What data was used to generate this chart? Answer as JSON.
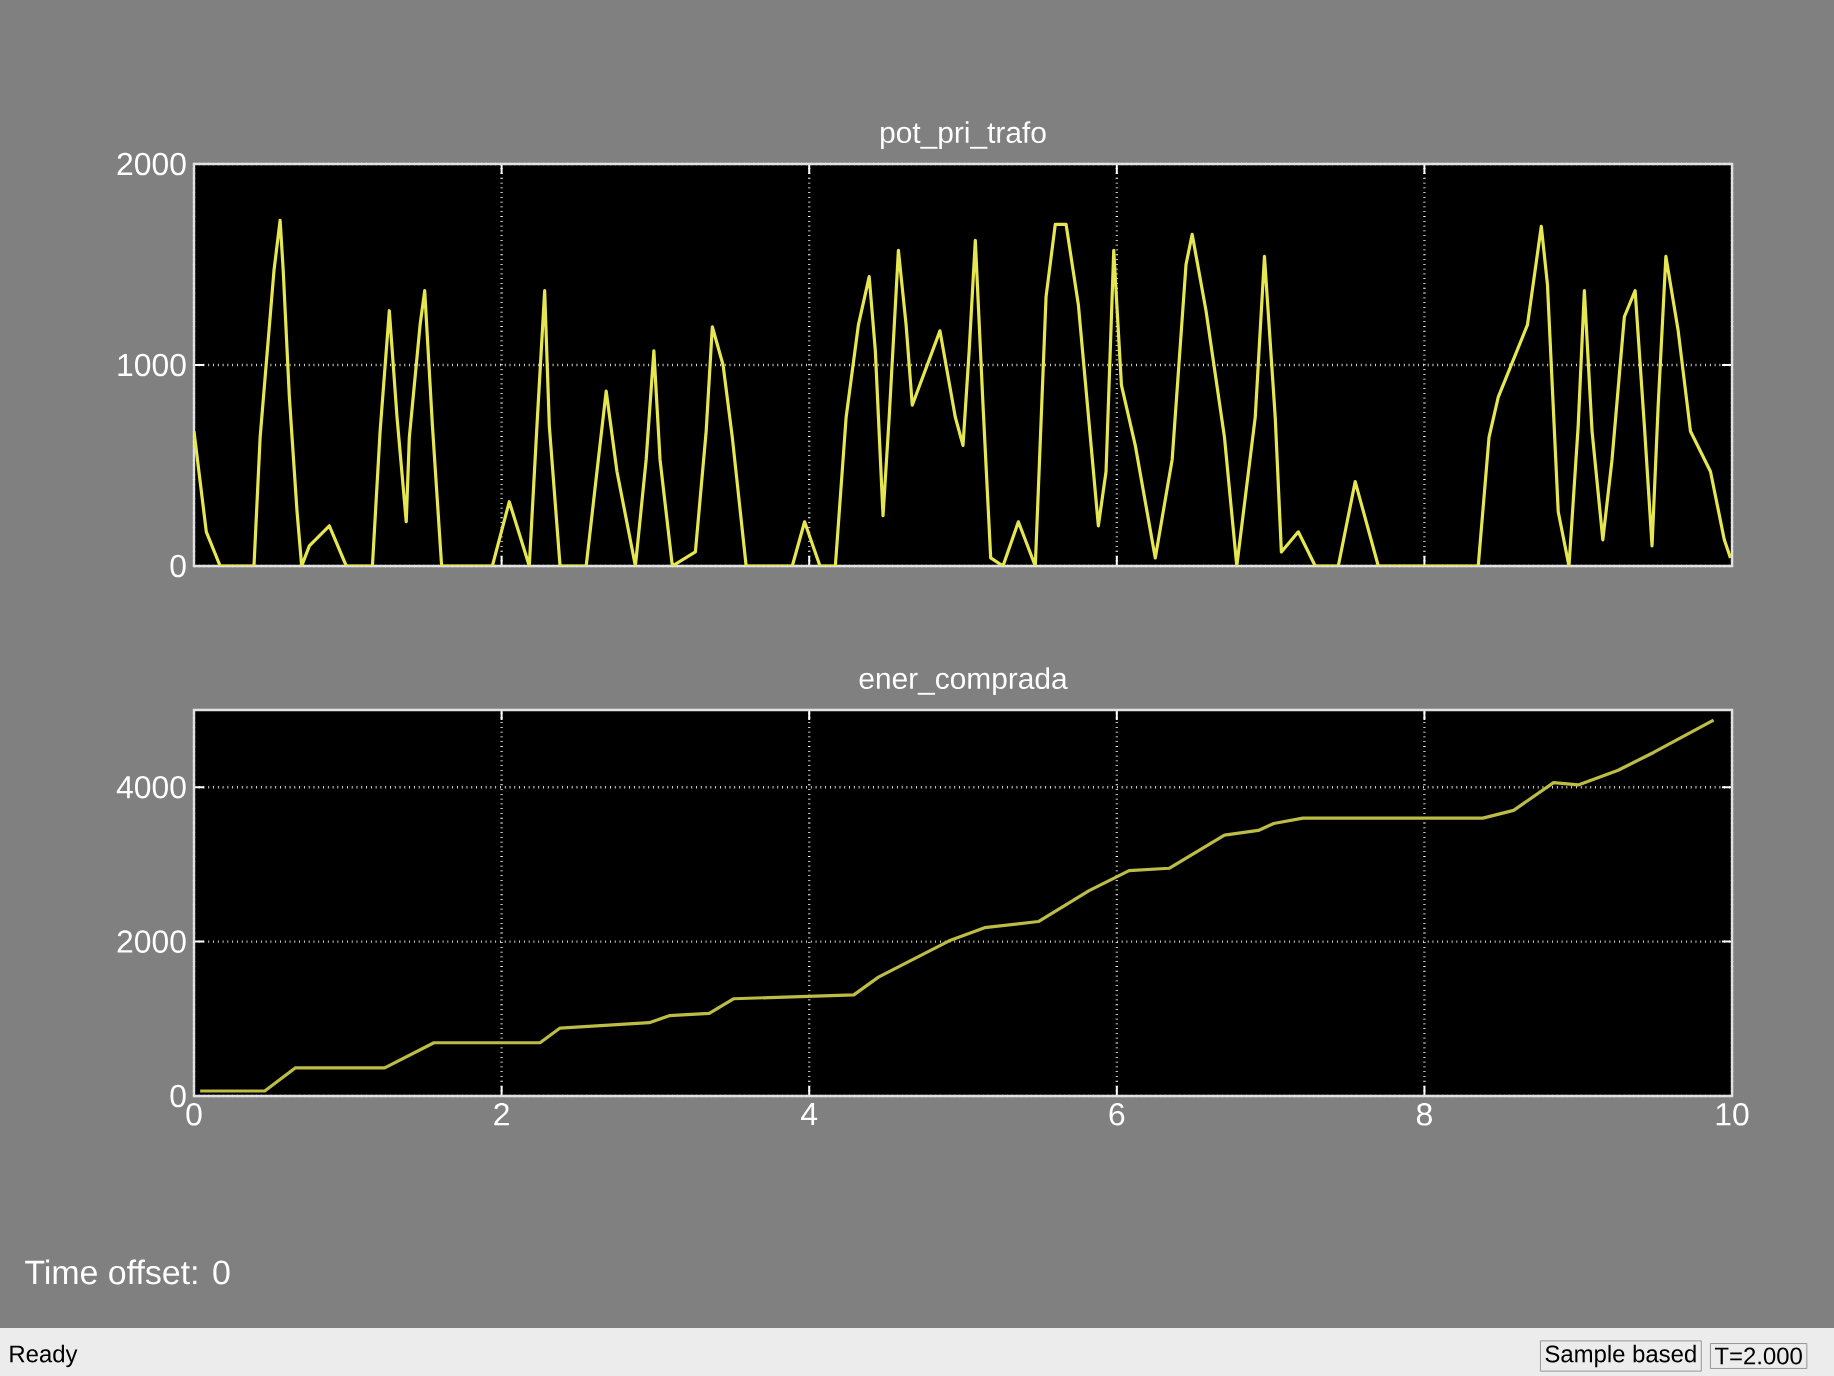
{
  "chart_data": [
    {
      "type": "line",
      "title": "pot_pri_trafo",
      "xlim": [
        0,
        10
      ],
      "ylim": [
        0,
        2000
      ],
      "xticks": [
        0,
        2,
        4,
        6,
        8,
        10
      ],
      "yticks": [
        0,
        1000,
        2000
      ],
      "grid": true,
      "tick_labels": "y",
      "marker": "none",
      "line_style": "solid",
      "x": [
        0,
        0.08,
        0.17,
        0.39,
        0.43,
        0.52,
        0.56,
        0.58,
        0.62,
        0.67,
        0.7,
        0.75,
        0.88,
        0.99,
        1.16,
        1.21,
        1.27,
        1.32,
        1.38,
        1.4,
        1.47,
        1.5,
        1.55,
        1.61,
        1.94,
        2.05,
        2.18,
        2.23,
        2.28,
        2.31,
        2.38,
        2.55,
        2.62,
        2.68,
        2.75,
        2.87,
        2.94,
        2.99,
        3.03,
        3.11,
        3.26,
        3.33,
        3.37,
        3.44,
        3.5,
        3.59,
        3.89,
        3.97,
        4.07,
        4.17,
        4.24,
        4.32,
        4.39,
        4.43,
        4.48,
        4.52,
        4.58,
        4.63,
        4.67,
        4.85,
        4.95,
        5.0,
        5.04,
        5.08,
        5.13,
        5.18,
        5.26,
        5.36,
        5.47,
        5.54,
        5.6,
        5.67,
        5.75,
        5.88,
        5.93,
        5.98,
        6.03,
        6.12,
        6.25,
        6.36,
        6.45,
        6.49,
        6.58,
        6.7,
        6.78,
        6.9,
        6.96,
        7.03,
        7.07,
        7.18,
        7.29,
        7.44,
        7.55,
        7.7,
        8.35,
        8.42,
        8.48,
        8.67,
        8.76,
        8.8,
        8.87,
        8.94,
        9.0,
        9.04,
        9.09,
        9.16,
        9.22,
        9.3,
        9.37,
        9.43,
        9.48,
        9.52,
        9.57,
        9.65,
        9.73,
        9.86,
        9.95,
        9.99
      ],
      "series": [
        {
          "color": "#e6e650",
          "values": [
            670,
            170,
            0,
            0,
            640,
            1470,
            1720,
            1470,
            840,
            270,
            0,
            100,
            200,
            0,
            0,
            670,
            1270,
            740,
            220,
            640,
            1200,
            1370,
            700,
            0,
            0,
            320,
            0,
            700,
            1370,
            700,
            0,
            0,
            470,
            870,
            470,
            0,
            530,
            1070,
            530,
            0,
            70,
            670,
            1190,
            1000,
            640,
            0,
            0,
            220,
            0,
            0,
            740,
            1200,
            1440,
            1070,
            250,
            740,
            1570,
            1200,
            800,
            1170,
            740,
            600,
            1070,
            1620,
            800,
            40,
            0,
            220,
            0,
            1340,
            1700,
            1700,
            1300,
            200,
            470,
            1570,
            900,
            600,
            40,
            530,
            1500,
            1650,
            1270,
            640,
            0,
            740,
            1540,
            740,
            70,
            170,
            0,
            0,
            420,
            0,
            0,
            640,
            840,
            1200,
            1690,
            1400,
            270,
            0,
            700,
            1370,
            670,
            130,
            530,
            1240,
            1370,
            700,
            100,
            800,
            1540,
            1170,
            670,
            470,
            130,
            40
          ]
        }
      ]
    },
    {
      "type": "line",
      "title": "ener_comprada",
      "xlim": [
        0,
        10
      ],
      "ylim": [
        0,
        5000
      ],
      "xticks": [
        0,
        2,
        4,
        6,
        8,
        10
      ],
      "yticks": [
        0,
        2000,
        4000
      ],
      "grid": true,
      "marker": "none",
      "line_style": "solid",
      "x": [
        0.04,
        0.46,
        0.66,
        1.24,
        1.56,
        2.25,
        2.38,
        2.96,
        3.09,
        3.35,
        3.51,
        4.29,
        4.45,
        4.91,
        5.14,
        5.49,
        5.82,
        6.08,
        6.34,
        6.7,
        6.92,
        7.02,
        7.21,
        8.38,
        8.58,
        8.84,
        9.0,
        9.26,
        9.49,
        9.88
      ],
      "series": [
        {
          "color": "#bcbc46",
          "values": [
            65,
            65,
            365,
            365,
            690,
            690,
            880,
            950,
            1040,
            1070,
            1260,
            1310,
            1540,
            2010,
            2180,
            2260,
            2660,
            2920,
            2950,
            3380,
            3440,
            3530,
            3600,
            3600,
            3700,
            4060,
            4030,
            4220,
            4450,
            4870
          ]
        }
      ],
      "annotations": [
        "Time offset:  0",
        "Ready",
        "Sample based",
        "T=2.000"
      ]
    }
  ]
}
